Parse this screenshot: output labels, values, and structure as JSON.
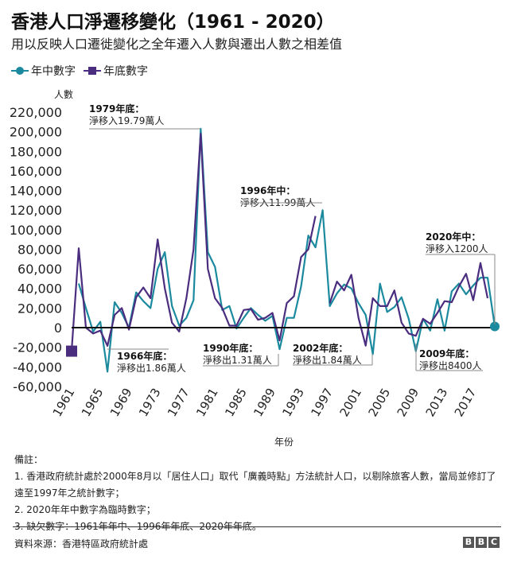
{
  "title": "香港人口淨遷移變化（1961 - 2020）",
  "subtitle": "用以反映人口遷徙變化之全年遷入人數與遷出人數之相差值",
  "legend": [
    {
      "label": "年中數字",
      "color": "#1b8a9e",
      "marker": "circle"
    },
    {
      "label": "年底數字",
      "color": "#4b2d7f",
      "marker": "square"
    }
  ],
  "chart_data": {
    "type": "line",
    "ylabel": "人數",
    "xlabel": "年份",
    "ylim": [
      -60000,
      220000
    ],
    "yticks": [
      -60000,
      -40000,
      -20000,
      0,
      20000,
      40000,
      60000,
      80000,
      100000,
      120000,
      140000,
      160000,
      180000,
      200000,
      220000
    ],
    "ytick_labels": [
      "-60,000",
      "-40,000",
      "-20,000",
      "0",
      "20,000",
      "40,000",
      "60,000",
      "80,000",
      "100,000",
      "120,000",
      "140,000",
      "160,000",
      "180,000",
      "200,000",
      "220,000"
    ],
    "xlim": [
      1961,
      2020
    ],
    "xticks": [
      "1961",
      "1965",
      "1969",
      "1973",
      "1977",
      "1981",
      "1985",
      "1989",
      "1993",
      "1997",
      "2001",
      "2005",
      "2009",
      "2013",
      "2017"
    ],
    "grid": false,
    "series": [
      {
        "name": "年中數字",
        "color": "#1b8a9e",
        "start_year": 1962,
        "values": [
          45000,
          20000,
          -4000,
          6000,
          -45000,
          26000,
          15000,
          0,
          36000,
          27000,
          20000,
          60000,
          77000,
          22000,
          2000,
          10000,
          28000,
          203000,
          77000,
          62000,
          18000,
          22000,
          -1000,
          10000,
          20000,
          13000,
          7000,
          12000,
          -22000,
          10000,
          10000,
          42000,
          94000,
          82000,
          119900,
          22000,
          35000,
          44000,
          40000,
          25000,
          13000,
          -27000,
          45000,
          16000,
          21000,
          31000,
          9000,
          -24000,
          9000,
          -3000,
          29000,
          -3000,
          37000,
          45000,
          34000,
          43000,
          51000,
          51000,
          1200
        ]
      },
      {
        "name": "年底數字",
        "color": "#4b2d7f",
        "start_year": 1961,
        "values": [
          -24000,
          81000,
          0,
          -6000,
          -3000,
          -18600,
          13000,
          20000,
          -2000,
          31000,
          41000,
          30000,
          90000,
          40000,
          5000,
          -4000,
          30000,
          80000,
          197900,
          60000,
          30000,
          20000,
          2000,
          2000,
          18000,
          19000,
          8000,
          10000,
          15000,
          -13100,
          25000,
          32000,
          72000,
          80000,
          114000,
          null,
          25000,
          47000,
          38000,
          54000,
          10000,
          -18400,
          30000,
          22000,
          22000,
          38000,
          5000,
          -6000,
          -8400,
          9000,
          4000,
          15000,
          27000,
          26000,
          42000,
          55000,
          28000,
          66000,
          30000
        ]
      }
    ],
    "annotations": [
      {
        "head": "1979年底：",
        "body": "淨移入19.79萬人"
      },
      {
        "head": "1996年中：",
        "body": "淨移入11.99萬人"
      },
      {
        "head": "2020年中：",
        "body": "淨移入1200人"
      },
      {
        "head": "1966年底：",
        "body": "淨移出1.86萬人"
      },
      {
        "head": "1990年底：",
        "body": "淨移出1.31萬人"
      },
      {
        "head": "2002年底：",
        "body": "淨移出1.84萬人"
      },
      {
        "head": "2009年底：",
        "body": "淨移出8400人"
      }
    ]
  },
  "notes": {
    "heading": "備註：",
    "items": [
      "1.  香港政府統計處於2000年8月以「居住人口」取代「廣義時點」方法統計人口，以剔除旅客人數，當局並修訂了遠至1997年之統計數字；",
      "2.  2020年年中數字為臨時數字；",
      "3.  缺欠數字：1961年年中、1996年年底、2020年年底。"
    ]
  },
  "source": "資料來源：香港特區政府統計處",
  "logo": [
    "B",
    "B",
    "C"
  ]
}
